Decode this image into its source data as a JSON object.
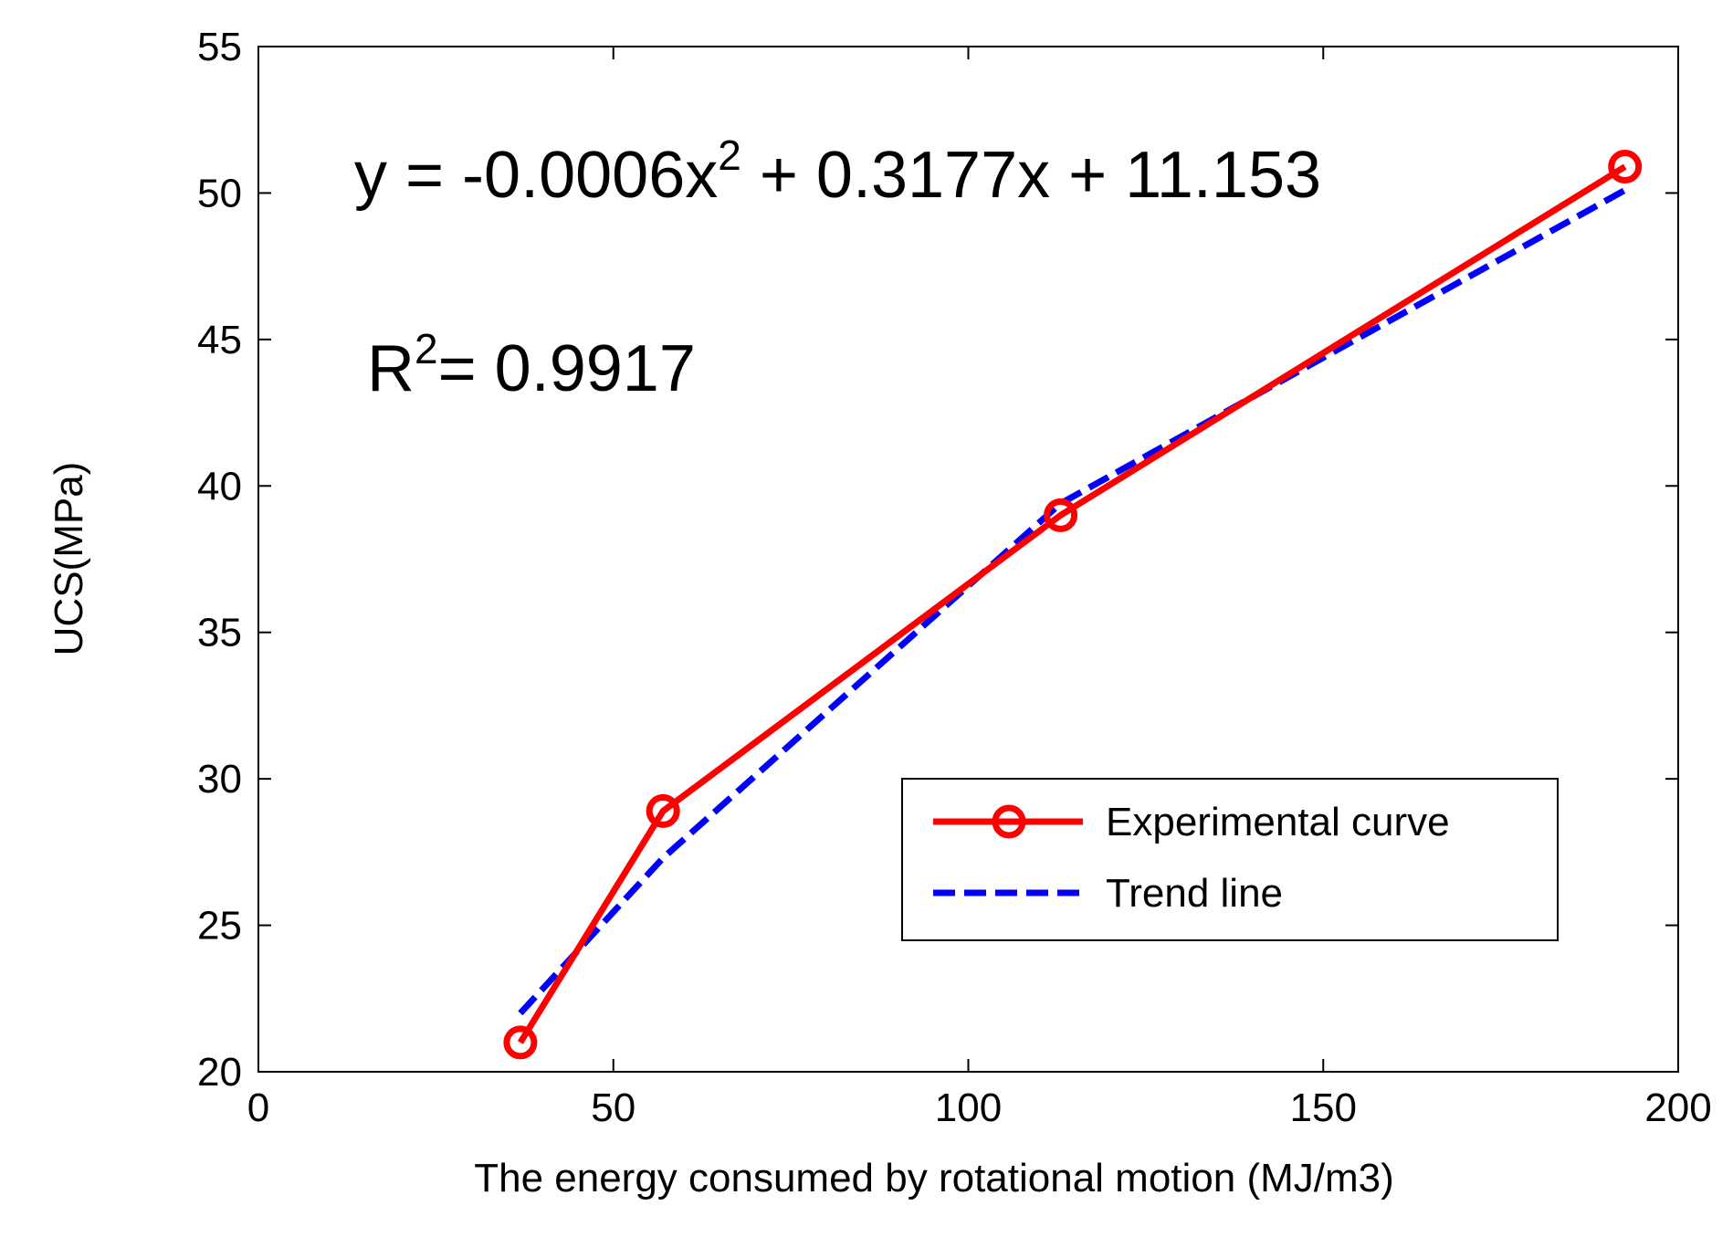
{
  "chart_data": {
    "type": "line",
    "title": "",
    "xlabel": "The energy consumed by rotational motion  (MJ/m3)",
    "ylabel": "UCS(MPa)",
    "xlim": [
      0,
      200
    ],
    "ylim": [
      20,
      55
    ],
    "xticks": [
      0,
      50,
      100,
      150,
      200
    ],
    "yticks": [
      20,
      25,
      30,
      35,
      40,
      45,
      50,
      55
    ],
    "grid": false,
    "legend_position": "lower-right",
    "series": [
      {
        "name": "Experimental curve",
        "style": "solid-circle-markers",
        "color": "#ff0000",
        "x": [
          36.9,
          57.0,
          113.0,
          192.5
        ],
        "y": [
          21.0,
          28.9,
          39.0,
          50.9
        ]
      },
      {
        "name": "Trend line",
        "style": "dashed",
        "color": "#0000ff",
        "x": [
          36.9,
          57.0,
          113.0,
          192.5
        ],
        "y": [
          22.0,
          27.3,
          39.4,
          50.1
        ]
      }
    ],
    "annotations": {
      "equation_main": "y = -0.0006x",
      "equation_exp": "2",
      "equation_rest": " + 0.3177x + 11.153",
      "r2_label": "R",
      "r2_exp": "2",
      "r2_value": "= 0.9917"
    }
  }
}
